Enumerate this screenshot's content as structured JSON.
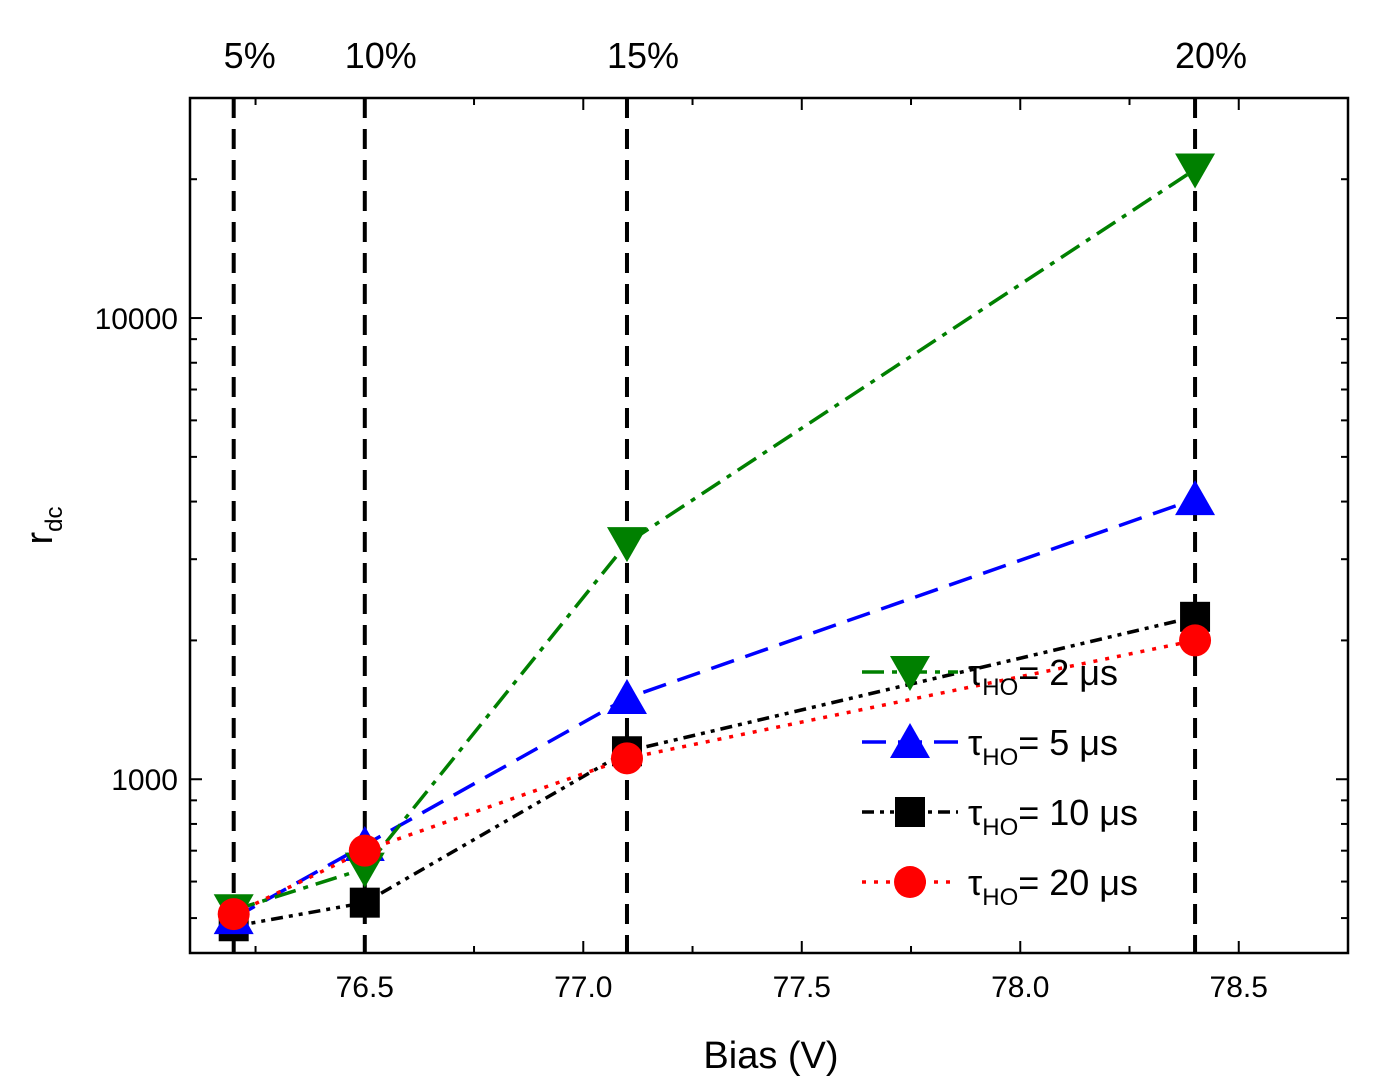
{
  "chart_data": {
    "type": "line",
    "title": "",
    "xlabel": "Bias (V)",
    "ylabel": "r",
    "ylabel_sub": "dc",
    "xlim": [
      76.1,
      78.75
    ],
    "ylim": [
      420,
      30000
    ],
    "yscale": "log",
    "x_ticks": [
      76.5,
      77.0,
      77.5,
      78.0,
      78.5
    ],
    "x_tick_labels": [
      "76.5",
      "77.0",
      "77.5",
      "78.0",
      "78.5"
    ],
    "y_ticks": [
      1000,
      10000
    ],
    "y_tick_labels": [
      "1000",
      "10000"
    ],
    "reference_lines": [
      {
        "x": 76.2,
        "label": "5%"
      },
      {
        "x": 76.5,
        "label": "10%"
      },
      {
        "x": 77.1,
        "label": "15%"
      },
      {
        "x": 78.4,
        "label": "20%"
      }
    ],
    "legend_position": "lower-right",
    "series": [
      {
        "name": "2 μs",
        "legend_prefix": "τ",
        "legend_sub": "HO",
        "legend_suffix": "= 2 μs",
        "color": "#008000",
        "marker": "triangle-down",
        "dash": "22,8,5,8",
        "x": [
          76.2,
          76.5,
          77.1,
          78.4
        ],
        "values": [
          520,
          640,
          3250,
          21000
        ]
      },
      {
        "name": "5 μs",
        "legend_prefix": "τ",
        "legend_sub": "HO",
        "legend_suffix": "= 5 μs",
        "color": "#0000ff",
        "marker": "triangle-up",
        "dash": "24,12",
        "x": [
          76.2,
          76.5,
          77.1,
          78.4
        ],
        "values": [
          500,
          720,
          1500,
          4050
        ]
      },
      {
        "name": "10 μs",
        "legend_prefix": "τ",
        "legend_sub": "HO",
        "legend_suffix": "= 10 μs",
        "color": "#000000",
        "marker": "square",
        "dash": "12,6,4,6,4,6",
        "x": [
          76.2,
          76.5,
          77.1,
          78.4
        ],
        "values": [
          480,
          540,
          1150,
          2250
        ]
      },
      {
        "name": "20 μs",
        "legend_prefix": "τ",
        "legend_sub": "HO",
        "legend_suffix": "= 20 μs",
        "color": "#ff0000",
        "marker": "circle",
        "dash": "4,8",
        "x": [
          76.2,
          76.5,
          77.1,
          78.4
        ],
        "values": [
          510,
          700,
          1110,
          2000
        ]
      }
    ]
  }
}
